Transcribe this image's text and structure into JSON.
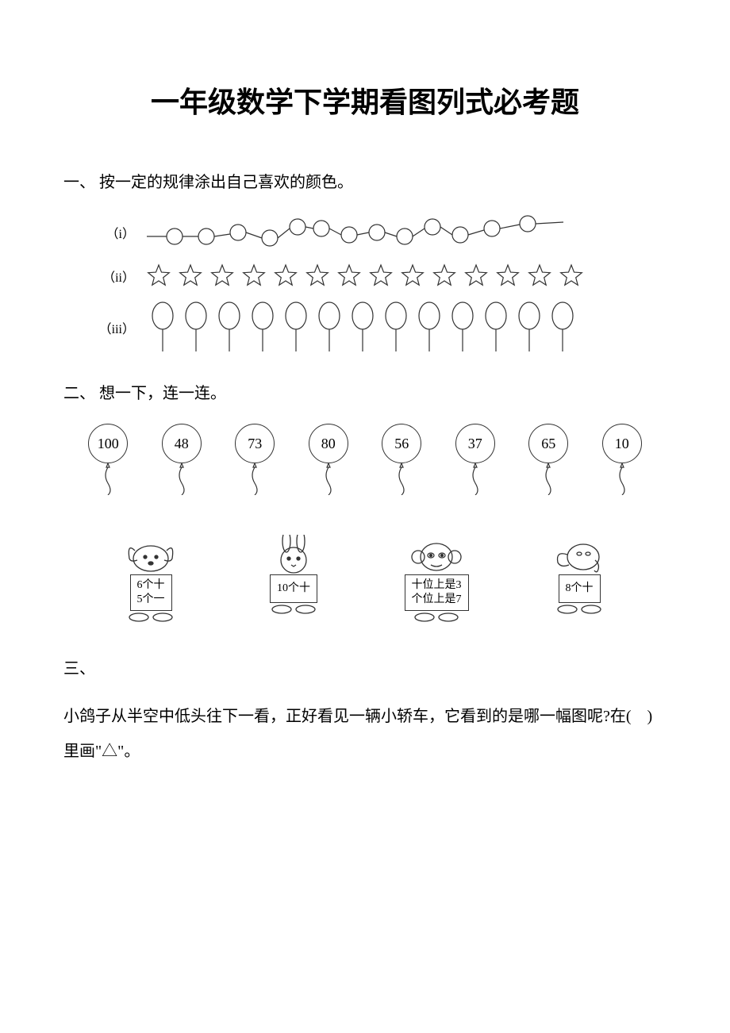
{
  "title": "一年级数学下学期看图列式必考题",
  "q1": {
    "heading": "一、 按一定的规律涂出自己喜欢的颜色。",
    "rows": [
      {
        "label": "（i）",
        "type": "circles_wave",
        "count": 13
      },
      {
        "label": "（ii）",
        "type": "stars",
        "count": 14
      },
      {
        "label": "（iii）",
        "type": "balloons_small",
        "count": 13
      }
    ],
    "stroke_color": "#333333"
  },
  "q2": {
    "heading": "二、 想一下，连一连。",
    "balloons": [
      "100",
      "48",
      "73",
      "80",
      "56",
      "37",
      "65",
      "10"
    ],
    "animals": [
      {
        "type": "dog",
        "line1": "6个十",
        "line2": "5个一"
      },
      {
        "type": "rabbit",
        "line1": "10个十",
        "line2": ""
      },
      {
        "type": "monkey",
        "line1": "十位上是3",
        "line2": "个位上是7"
      },
      {
        "type": "elephant",
        "line1": "8个十",
        "line2": ""
      }
    ],
    "stroke_color": "#333333"
  },
  "q3": {
    "heading": "三、",
    "text": "小鸽子从半空中低头往下一看，正好看见一辆小轿车，它看到的是哪一幅图呢?在(　)里画\"△\"。"
  }
}
